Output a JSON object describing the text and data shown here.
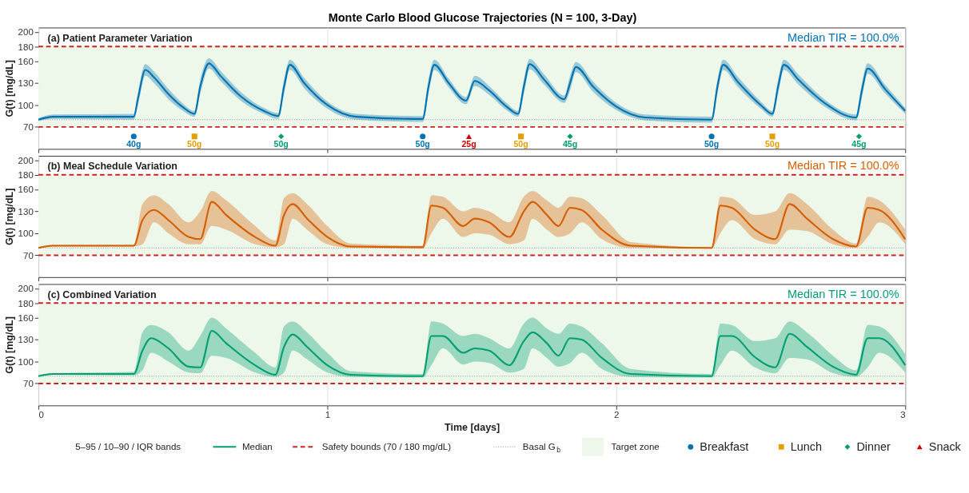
{
  "chart_data": [
    {
      "type": "line",
      "title": "Monte Carlo Blood Glucose Trajectories  (N = 100, 3-Day)",
      "subtitle": "(a) Patient Parameter Variation",
      "ylabel": "G(t)  [mg/dL]",
      "xlim": [
        0,
        3
      ],
      "xticks": [
        0,
        1,
        2,
        3
      ],
      "ylim": [
        40,
        206
      ],
      "yticks": [
        70,
        100,
        130,
        160,
        180,
        200
      ],
      "grid": "x",
      "tick_labels": "y",
      "legend": "bottom",
      "annotations": [
        "Median TIR = 100.0%",
        {
          "text": "40g",
          "x": 0.33,
          "y": 57
        },
        {
          "text": "50g",
          "x": 1.33,
          "y": 57
        },
        {
          "text": "50g",
          "x": 2.33,
          "y": 57
        },
        {
          "text": "50g",
          "x": 0.54,
          "y": 57
        },
        {
          "text": "50g",
          "x": 1.67,
          "y": 57
        },
        {
          "text": "50g",
          "x": 2.54,
          "y": 57
        },
        {
          "text": "50g",
          "x": 0.84,
          "y": 57
        },
        {
          "text": "45g",
          "x": 1.84,
          "y": 57
        },
        {
          "text": "45g",
          "x": 2.84,
          "y": 57
        },
        {
          "text": "25g",
          "x": 1.49,
          "y": 57
        }
      ],
      "ref_lines": [
        {
          "axis": "y",
          "value": 70,
          "color": "#cc2222",
          "line_style": "dashed"
        },
        {
          "axis": "y",
          "value": 180,
          "color": "#cc2222",
          "line_style": "dashed"
        },
        {
          "axis": "y",
          "value": 80,
          "color": "#888888",
          "line_style": "dotted"
        }
      ],
      "bands": [
        {
          "axis": "y",
          "from": 70,
          "to": 180,
          "color": "#eef8ea"
        }
      ],
      "series": [
        {
          "type": "line",
          "color": "#0072b2",
          "x": [
            0,
            0.05,
            0.33,
            0.345,
            0.37,
            0.4,
            0.45,
            0.5,
            0.54,
            0.56,
            0.59,
            0.63,
            0.7,
            0.78,
            0.83,
            0.85,
            0.87,
            0.92,
            1.0,
            1.1,
            1.33,
            1.35,
            1.37,
            1.42,
            1.48,
            1.51,
            1.56,
            1.62,
            1.66,
            1.68,
            1.7,
            1.75,
            1.82,
            1.84,
            1.86,
            1.92,
            2.0,
            2.1,
            2.33,
            2.35,
            2.37,
            2.42,
            2.5,
            2.54,
            2.56,
            2.58,
            2.63,
            2.72,
            2.83,
            2.85,
            2.87,
            2.93,
            3.0
          ],
          "values": [
            80,
            84,
            84,
            110,
            148,
            138,
            115,
            97,
            88,
            125,
            157,
            140,
            112,
            92,
            85,
            125,
            155,
            130,
            100,
            84,
            81,
            125,
            155,
            130,
            106,
            133,
            120,
            98,
            88,
            125,
            156,
            135,
            108,
            130,
            152,
            125,
            98,
            83,
            80,
            125,
            155,
            132,
            100,
            88,
            125,
            155,
            135,
            103,
            83,
            120,
            150,
            122,
            92
          ],
          "lower": [
            78,
            81,
            80,
            100,
            140,
            130,
            108,
            92,
            84,
            115,
            150,
            133,
            106,
            88,
            81,
            115,
            148,
            123,
            95,
            80,
            77,
            115,
            148,
            124,
            101,
            126,
            114,
            93,
            84,
            115,
            149,
            128,
            103,
            120,
            145,
            118,
            93,
            79,
            76,
            115,
            148,
            125,
            95,
            84,
            115,
            148,
            128,
            98,
            79,
            110,
            143,
            116,
            88
          ],
          "upper": [
            82,
            87,
            88,
            118,
            156,
            146,
            122,
            102,
            92,
            135,
            164,
            147,
            118,
            96,
            89,
            135,
            162,
            137,
            105,
            88,
            85,
            135,
            162,
            136,
            111,
            140,
            126,
            103,
            92,
            135,
            163,
            142,
            113,
            140,
            159,
            132,
            103,
            87,
            84,
            135,
            162,
            139,
            105,
            92,
            135,
            162,
            142,
            108,
            87,
            130,
            157,
            128,
            96
          ]
        },
        {
          "name": "Breakfast",
          "type": "scatter",
          "marker": "circle",
          "color": "#0072b2",
          "x": [
            0.33,
            1.33,
            2.33
          ],
          "values": [
            57,
            57,
            57
          ]
        },
        {
          "name": "Lunch",
          "type": "scatter",
          "marker": "square",
          "color": "#e69f00",
          "x": [
            0.54,
            1.67,
            2.54
          ],
          "values": [
            57,
            57,
            57
          ]
        },
        {
          "name": "Dinner",
          "type": "scatter",
          "marker": "diamond",
          "color": "#009e73",
          "x": [
            0.84,
            1.84,
            2.84
          ],
          "values": [
            57,
            57,
            57
          ]
        },
        {
          "name": "Snack",
          "type": "scatter",
          "marker": "triangle",
          "color": "#cc0000",
          "x": [
            1.49
          ],
          "values": [
            57
          ]
        }
      ]
    },
    {
      "type": "line",
      "subtitle": "(b) Meal Schedule Variation",
      "ylabel": "G(t)  [mg/dL]",
      "xlim": [
        0,
        3
      ],
      "xticks": [
        0,
        1,
        2,
        3
      ],
      "ylim": [
        40,
        206
      ],
      "yticks": [
        70,
        100,
        130,
        160,
        180,
        200
      ],
      "grid": "x",
      "tick_labels": "y",
      "annotations": [
        "Median TIR = 100.0%"
      ],
      "ref_lines": [
        {
          "axis": "y",
          "value": 70,
          "color": "#cc2222",
          "line_style": "dashed"
        },
        {
          "axis": "y",
          "value": 180,
          "color": "#cc2222",
          "line_style": "dashed"
        },
        {
          "axis": "y",
          "value": 80,
          "color": "#888888",
          "line_style": "dotted"
        }
      ],
      "bands": [
        {
          "axis": "y",
          "from": 70,
          "to": 180,
          "color": "#eef8ea"
        }
      ],
      "series": [
        {
          "type": "line",
          "color": "#d55e00",
          "x": [
            0,
            0.05,
            0.33,
            0.36,
            0.4,
            0.45,
            0.52,
            0.56,
            0.6,
            0.65,
            0.75,
            0.82,
            0.85,
            0.88,
            0.93,
            1.0,
            1.08,
            1.33,
            1.36,
            1.4,
            1.47,
            1.51,
            1.56,
            1.63,
            1.68,
            1.71,
            1.76,
            1.8,
            1.84,
            1.88,
            1.95,
            2.05,
            2.33,
            2.36,
            2.4,
            2.48,
            2.55,
            2.6,
            2.66,
            2.75,
            2.83,
            2.87,
            2.91,
            3.0
          ],
          "values": [
            80,
            83,
            83,
            118,
            132,
            118,
            95,
            92,
            143,
            125,
            95,
            83,
            125,
            140,
            120,
            95,
            82,
            81,
            138,
            135,
            110,
            120,
            115,
            95,
            130,
            143,
            125,
            110,
            135,
            132,
            105,
            83,
            80,
            138,
            135,
            105,
            92,
            140,
            120,
            92,
            82,
            135,
            132,
            92
          ],
          "lower": [
            79,
            82,
            82,
            85,
            115,
            100,
            85,
            85,
            110,
            105,
            85,
            81,
            85,
            120,
            105,
            85,
            80,
            79,
            100,
            120,
            95,
            100,
            98,
            85,
            90,
            120,
            105,
            95,
            100,
            115,
            92,
            80,
            79,
            100,
            118,
            92,
            85,
            105,
            103,
            85,
            80,
            95,
            115,
            85
          ],
          "upper": [
            81,
            84,
            84,
            140,
            152,
            140,
            115,
            130,
            158,
            145,
            110,
            90,
            148,
            155,
            140,
            110,
            86,
            83,
            152,
            150,
            130,
            135,
            130,
            115,
            150,
            158,
            145,
            135,
            150,
            148,
            125,
            88,
            81,
            150,
            148,
            125,
            130,
            155,
            140,
            105,
            86,
            150,
            145,
            105
          ]
        }
      ]
    },
    {
      "type": "line",
      "subtitle": "(c) Combined Variation",
      "ylabel": "G(t)  [mg/dL]",
      "xlabel": "Time  [days]",
      "xlim": [
        0,
        3
      ],
      "xticks": [
        0,
        1,
        2,
        3
      ],
      "ylim": [
        40,
        206
      ],
      "yticks": [
        70,
        100,
        130,
        160,
        180,
        200
      ],
      "grid": "x",
      "legend": "bottom",
      "annotations": [
        "Median TIR = 100.0%",
        "5–95 / 10–90 / IQR bands",
        "Median"
      ],
      "ref_lines": [
        {
          "axis": "y",
          "value": 70,
          "color": "#cc2222",
          "line_style": "dashed",
          "label": "Safety bounds  (70 / 180 mg/dL)"
        },
        {
          "axis": "y",
          "value": 180,
          "color": "#cc2222",
          "line_style": "dashed"
        },
        {
          "axis": "y",
          "value": 80,
          "color": "#888888",
          "line_style": "dotted",
          "label": "Basal G$_{b}$"
        }
      ],
      "bands": [
        {
          "axis": "y",
          "from": 70,
          "to": 180,
          "color": "#eef8ea",
          "label": "Target zone"
        }
      ],
      "series": [
        {
          "type": "line",
          "color": "#009e73",
          "x": [
            0,
            0.05,
            0.33,
            0.36,
            0.39,
            0.45,
            0.52,
            0.56,
            0.6,
            0.65,
            0.75,
            0.82,
            0.85,
            0.88,
            0.93,
            1.0,
            1.08,
            1.33,
            1.36,
            1.4,
            1.47,
            1.51,
            1.56,
            1.63,
            1.68,
            1.71,
            1.76,
            1.8,
            1.84,
            1.88,
            1.95,
            2.05,
            2.33,
            2.36,
            2.4,
            2.48,
            2.55,
            2.6,
            2.66,
            2.75,
            2.83,
            2.87,
            2.91,
            3.0
          ],
          "values": [
            80,
            83,
            83,
            115,
            132,
            118,
            93,
            92,
            142,
            125,
            95,
            82,
            120,
            137,
            120,
            95,
            82,
            80,
            135,
            135,
            112,
            118,
            115,
            95,
            128,
            140,
            125,
            108,
            132,
            130,
            105,
            83,
            80,
            135,
            135,
            106,
            92,
            138,
            120,
            93,
            82,
            132,
            132,
            95
          ],
          "lower": [
            79,
            82,
            81,
            88,
            112,
            100,
            85,
            84,
            108,
            105,
            85,
            79,
            85,
            115,
            103,
            85,
            79,
            78,
            95,
            118,
            96,
            100,
            98,
            85,
            90,
            118,
            105,
            93,
            98,
            112,
            90,
            79,
            78,
            95,
            115,
            92,
            84,
            105,
            103,
            84,
            79,
            92,
            112,
            85
          ],
          "upper": [
            81,
            84,
            86,
            140,
            150,
            140,
            115,
            135,
            160,
            145,
            112,
            92,
            148,
            155,
            140,
            112,
            87,
            83,
            155,
            152,
            135,
            138,
            132,
            118,
            152,
            160,
            145,
            138,
            152,
            148,
            125,
            90,
            83,
            152,
            150,
            128,
            132,
            155,
            140,
            108,
            88,
            150,
            148,
            110
          ]
        }
      ]
    }
  ]
}
